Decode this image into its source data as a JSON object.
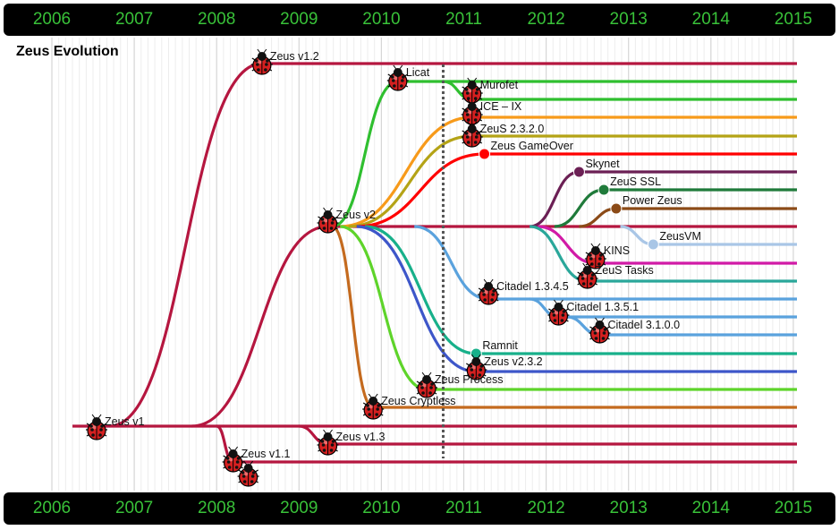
{
  "title": "Zeus Evolution",
  "years": [
    "2006",
    "2007",
    "2008",
    "2009",
    "2010",
    "2011",
    "2012",
    "2013",
    "2014",
    "2015"
  ],
  "marker_year": 2010.75,
  "chart_data": {
    "type": "timeline",
    "title": "Zeus Evolution",
    "x_axis": {
      "min": 2006,
      "max": 2015,
      "tick_labels": [
        "2006",
        "2007",
        "2008",
        "2009",
        "2010",
        "2011",
        "2012",
        "2013",
        "2014",
        "2015"
      ]
    },
    "variants": [
      {
        "name": "Zeus v1",
        "start": 2006.25,
        "parent": null,
        "color": "#b5163f",
        "marker": "bug"
      },
      {
        "name": "Zeus v1.2",
        "start": 2008.5,
        "parent": "Zeus v1",
        "color": "#b5163f",
        "marker": "bug"
      },
      {
        "name": "Zeus v1.1",
        "start": 2008.2,
        "parent": "Zeus v1",
        "color": "#b5163f",
        "marker": "bug"
      },
      {
        "name": "Zeus v1.3",
        "start": 2009.35,
        "parent": "Zeus v1",
        "color": "#b5163f",
        "marker": "bug"
      },
      {
        "name": "Zeus v2",
        "start": 2009.35,
        "parent": "Zeus v1",
        "color": "#b5163f",
        "marker": "bug"
      },
      {
        "name": "Licat",
        "start": 2010.2,
        "parent": "Zeus v2",
        "color": "#2fbf2f",
        "marker": "bug"
      },
      {
        "name": "Murofet",
        "start": 2011.2,
        "parent": "Licat",
        "color": "#2fbf2f",
        "marker": "bug"
      },
      {
        "name": "ICE – IX",
        "start": 2011.15,
        "parent": "Zeus v2",
        "color": "#f79a1a",
        "marker": "bug"
      },
      {
        "name": "ZeuS 2.3.2.0",
        "start": 2011.2,
        "parent": "Zeus v2",
        "color": "#b4a316",
        "marker": "bug"
      },
      {
        "name": "Zeus GameOver",
        "start": 2011.3,
        "parent": "Zeus v2",
        "color": "#ff0000",
        "marker": "dot"
      },
      {
        "name": "Skynet",
        "start": 2012.4,
        "parent": "Zeus v2",
        "color": "#6b1f54",
        "marker": "dot"
      },
      {
        "name": "ZeuS SSL",
        "start": 2012.75,
        "parent": "Zeus v2",
        "color": "#1f7a3a",
        "marker": "dot"
      },
      {
        "name": "Power Zeus",
        "start": 2012.9,
        "parent": "Zeus v2",
        "color": "#8b4a17",
        "marker": "dot"
      },
      {
        "name": "ZeusVM",
        "start": 2013.55,
        "parent": "Zeus v2",
        "color": "#a9c6e6",
        "marker": "dot"
      },
      {
        "name": "KINS",
        "start": 2012.8,
        "parent": "Zeus v2",
        "color": "#d11aa6",
        "marker": "bug"
      },
      {
        "name": "ZeuS Tasks",
        "start": 2012.6,
        "parent": "Zeus v2",
        "color": "#2aa79a",
        "marker": "bug"
      },
      {
        "name": "Citadel 1.3.4.5",
        "start": 2011.4,
        "parent": "Zeus v2",
        "color": "#5aa2dd",
        "marker": "bug"
      },
      {
        "name": "Citadel 1.3.5.1",
        "start": 2012.15,
        "parent": "Citadel 1.3.4.5",
        "color": "#5aa2dd",
        "marker": "bug"
      },
      {
        "name": "Citadel 3.1.0.0",
        "start": 2012.65,
        "parent": "Citadel 1.3.5.1",
        "color": "#5aa2dd",
        "marker": "bug"
      },
      {
        "name": "Ramnit",
        "start": 2011.25,
        "parent": "Zeus v2",
        "color": "#17b08a",
        "marker": "dot"
      },
      {
        "name": "Zeus v2.3.2",
        "start": 2011.2,
        "parent": "Zeus v2",
        "color": "#3d56c9",
        "marker": "bug"
      },
      {
        "name": "Zeus Process",
        "start": 2010.5,
        "parent": "Zeus v2",
        "color": "#5ed42a",
        "marker": "bug"
      },
      {
        "name": "Zeus Cryptless",
        "start": 2009.9,
        "parent": "Zeus v2",
        "color": "#c46a1e",
        "marker": "bug"
      }
    ]
  }
}
